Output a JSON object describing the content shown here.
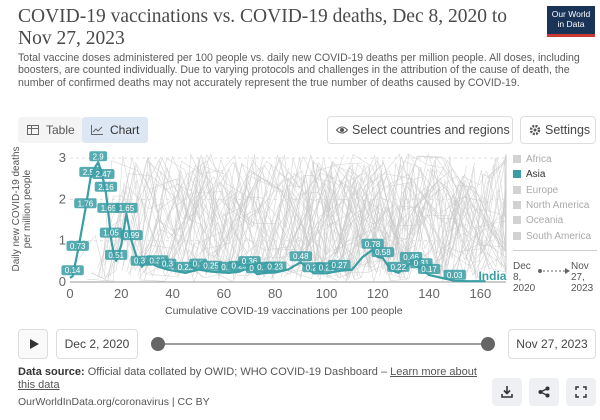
{
  "header": {
    "title": "COVID-19 vaccinations vs. COVID-19 deaths, Dec 8, 2020 to Nov 27, 2023",
    "subtitle": "Total vaccine doses administered per 100 people vs. daily new COVID-19 deaths per million people. All doses, including boosters, are counted individually. Due to varying protocols and challenges in the attribution of the cause of death, the number of confirmed deaths may not accurately represent the true number of deaths caused by COVID-19.",
    "logo_line1": "Our World",
    "logo_line2": "in Data"
  },
  "toolbar": {
    "table_label": "Table",
    "chart_label": "Chart",
    "select_label": "Select countries and regions",
    "settings_label": "Settings"
  },
  "timeline": {
    "start_date": "Dec 2, 2020",
    "end_date": "Nov 27, 2023"
  },
  "time_legend": {
    "from_line1": "Dec",
    "from_line2": "8,",
    "from_line3": "2020",
    "to_line1": "Nov",
    "to_line2": "27,",
    "to_line3": "2023"
  },
  "footer": {
    "source_label": "Data source:",
    "source_text": "Official data collated by OWID; WHO COVID-19 Dashboard –",
    "learn_more": "Learn more about this data",
    "credit": "OurWorldInData.org/coronavirus | CC BY"
  },
  "colors": {
    "highlight": "#3a9ea5",
    "background_lines": "#c8c8c8",
    "legend_inactive": "#d2d2d2"
  },
  "icons": {
    "table": "table-icon",
    "chart": "chart-icon",
    "select": "eye-icon",
    "settings": "gear-icon",
    "play": "play-icon",
    "download": "download-icon",
    "share": "share-icon",
    "fullscreen": "fullscreen-icon"
  },
  "chart_data": {
    "type": "line",
    "xlabel": "Cumulative COVID-19 vaccinations per 100 people",
    "ylabel": "Daily new COVID-19 deaths per million people",
    "xlim": [
      0,
      170
    ],
    "ylim": [
      0,
      3.1
    ],
    "xticks": [
      0,
      20,
      40,
      60,
      80,
      100,
      120,
      140,
      160
    ],
    "yticks": [
      0,
      1,
      2,
      3
    ],
    "legend": [
      {
        "name": "Africa",
        "active": false
      },
      {
        "name": "Asia",
        "active": true
      },
      {
        "name": "Europe",
        "active": false
      },
      {
        "name": "North America",
        "active": false
      },
      {
        "name": "Oceania",
        "active": false
      },
      {
        "name": "South America",
        "active": false
      }
    ],
    "legend_position": "right",
    "series": [
      {
        "name": "India",
        "x": [
          0,
          1,
          3,
          6,
          8,
          10,
          11,
          12,
          13,
          14,
          15,
          16,
          17,
          18,
          20,
          22,
          24,
          26,
          28,
          30,
          34,
          38,
          45,
          50,
          55,
          62,
          66,
          70,
          73,
          76,
          80,
          85,
          90,
          95,
          100,
          105,
          110,
          114,
          118,
          120,
          122,
          125,
          128,
          133,
          137,
          140,
          145,
          150,
          155,
          160,
          162
        ],
        "y": [
          0.1,
          0.14,
          0.73,
          1.76,
          2.52,
          2.8,
          2.9,
          2.7,
          2.47,
          2.16,
          1.65,
          1.05,
          0.7,
          0.51,
          0.9,
          1.65,
          0.99,
          0.6,
          0.37,
          0.5,
          0.38,
          0.3,
          0.22,
          0.3,
          0.25,
          0.22,
          0.25,
          0.36,
          0.19,
          0.22,
          0.23,
          0.3,
          0.48,
          0.21,
          0.21,
          0.27,
          0.3,
          0.6,
          0.78,
          0.6,
          0.58,
          0.3,
          0.22,
          0.46,
          0.31,
          0.17,
          0.1,
          0.03,
          0.02,
          0.02,
          0.02
        ],
        "data_labels": [
          {
            "x": 1,
            "y": 0.14,
            "text": "0.14"
          },
          {
            "x": 3,
            "y": 0.73,
            "text": "0.73"
          },
          {
            "x": 6,
            "y": 1.76,
            "text": "1.76"
          },
          {
            "x": 8,
            "y": 2.52,
            "text": "2.52"
          },
          {
            "x": 11,
            "y": 2.9,
            "text": "2.9"
          },
          {
            "x": 13,
            "y": 2.47,
            "text": "2.47"
          },
          {
            "x": 14,
            "y": 2.16,
            "text": "2.16"
          },
          {
            "x": 15,
            "y": 1.65,
            "text": "1.65"
          },
          {
            "x": 16,
            "y": 1.05,
            "text": "1.05"
          },
          {
            "x": 18,
            "y": 0.51,
            "text": "0.51"
          },
          {
            "x": 22,
            "y": 1.65,
            "text": "1.65"
          },
          {
            "x": 24,
            "y": 0.99,
            "text": "0.99"
          },
          {
            "x": 28,
            "y": 0.37,
            "text": "0.37"
          },
          {
            "x": 34,
            "y": 0.38,
            "text": "0.38"
          },
          {
            "x": 38,
            "y": 0.3,
            "text": "0.3"
          },
          {
            "x": 45,
            "y": 0.22,
            "text": "0.22"
          },
          {
            "x": 50,
            "y": 0.3,
            "text": "0.3"
          },
          {
            "x": 55,
            "y": 0.25,
            "text": "0.25"
          },
          {
            "x": 62,
            "y": 0.22,
            "text": "0.22"
          },
          {
            "x": 66,
            "y": 0.25,
            "text": "0.25"
          },
          {
            "x": 70,
            "y": 0.36,
            "text": "0.36"
          },
          {
            "x": 73,
            "y": 0.19,
            "text": "0.19"
          },
          {
            "x": 76,
            "y": 0.22,
            "text": "0.22"
          },
          {
            "x": 80,
            "y": 0.23,
            "text": "0.23"
          },
          {
            "x": 90,
            "y": 0.48,
            "text": "0.48"
          },
          {
            "x": 95,
            "y": 0.21,
            "text": "0.21"
          },
          {
            "x": 100,
            "y": 0.21,
            "text": "0.21"
          },
          {
            "x": 105,
            "y": 0.27,
            "text": "0.27"
          },
          {
            "x": 118,
            "y": 0.78,
            "text": "0.78"
          },
          {
            "x": 122,
            "y": 0.58,
            "text": "0.58"
          },
          {
            "x": 128,
            "y": 0.22,
            "text": "0.22"
          },
          {
            "x": 133,
            "y": 0.46,
            "text": "0.46"
          },
          {
            "x": 137,
            "y": 0.31,
            "text": "0.31"
          },
          {
            "x": 140,
            "y": 0.17,
            "text": "0.17"
          },
          {
            "x": 150,
            "y": 0.03,
            "text": "0.03"
          }
        ]
      }
    ]
  }
}
